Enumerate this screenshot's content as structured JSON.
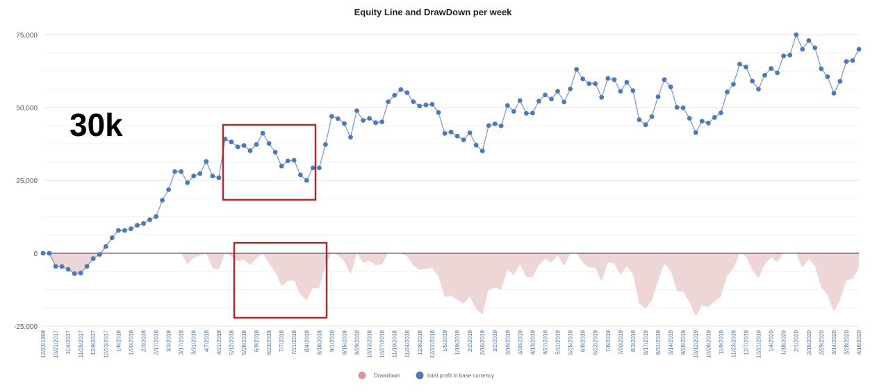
{
  "chart_data": {
    "type": "line",
    "title": "Equity Line and DrawDown per week",
    "xlabel": "",
    "ylabel": "",
    "ylim": [
      -25000,
      75000
    ],
    "yticks": [
      -25000,
      0,
      25000,
      50000,
      75000
    ],
    "ytick_labels": [
      "-25,000",
      "0",
      "25,000",
      "50,000",
      "75,000"
    ],
    "xtick_labels": [
      "12/23/1899",
      "10/21/2017",
      "11/4/2017",
      "11/25/2017",
      "12/9/2017",
      "12/23/2017",
      "1/6/2018",
      "1/20/2018",
      "2/3/2018",
      "2/17/2018",
      "3/3/2018",
      "3/17/2018",
      "3/31/2018",
      "4/7/2018",
      "4/21/2018",
      "5/12/2018",
      "5/26/2018",
      "6/9/2018",
      "6/23/2018",
      "7/7/2018",
      "7/21/2018",
      "8/4/2018",
      "8/18/2018",
      "9/1/2018",
      "9/15/2018",
      "9/29/2018",
      "10/13/2018",
      "10/27/2018",
      "11/10/2018",
      "11/24/2018",
      "12/8/2018",
      "12/22/2018",
      "1/5/2019",
      "1/19/2019",
      "2/2/2019",
      "2/16/2019",
      "3/2/2019",
      "3/16/2019",
      "3/30/2019",
      "4/13/2019",
      "4/27/2019",
      "5/11/2019",
      "5/25/2019",
      "6/8/2019",
      "6/22/2019",
      "7/6/2019",
      "7/20/2019",
      "8/3/2019",
      "8/17/2019",
      "8/31/2019",
      "9/14/2019",
      "9/28/2019",
      "10/12/2019",
      "10/26/2019",
      "11/9/2019",
      "11/23/2019",
      "12/7/2019",
      "12/21/2019",
      "1/4/2020",
      "1/18/2020",
      "2/1/2020",
      "2/15/2020",
      "2/29/2020",
      "3/14/2020",
      "3/28/2020",
      "4/18/2020"
    ],
    "grid": true,
    "legend_position": "bottom",
    "series": [
      {
        "name": "total profit in base currency",
        "color": "#4f78b8",
        "values": [
          0,
          0,
          -4500,
          -4600,
          -5500,
          -7000,
          -6800,
          -4500,
          -1800,
          -400,
          2300,
          5300,
          7800,
          7800,
          8400,
          9600,
          10200,
          11500,
          12600,
          18200,
          21800,
          28000,
          28000,
          24200,
          26500,
          27300,
          31500,
          26500,
          25900,
          39200,
          38200,
          36500,
          37000,
          35200,
          37300,
          41200,
          37700,
          34700,
          29900,
          31700,
          31900,
          26900,
          25000,
          29300,
          29300,
          37300,
          47000,
          46200,
          44500,
          39800,
          48900,
          45600,
          46300,
          44800,
          45100,
          52000,
          54200,
          56200,
          55100,
          52000,
          50500,
          50900,
          51100,
          48300,
          41100,
          41600,
          40200,
          38900,
          41300,
          37100,
          35100,
          43800,
          44400,
          43700,
          50700,
          48700,
          52400,
          48000,
          48100,
          52200,
          54300,
          52900,
          55600,
          51900,
          56400,
          63100,
          59800,
          58200,
          58200,
          53500,
          60000,
          59600,
          55600,
          58700,
          55800,
          45800,
          44100,
          46900,
          53700,
          59600,
          57100,
          50100,
          49900,
          46300,
          41400,
          45300,
          44700,
          46600,
          48200,
          55300,
          58000,
          64900,
          63900,
          59100,
          56300,
          61100,
          63400,
          61900,
          67700,
          68000,
          75000,
          70000,
          73000,
          70500,
          63300,
          60600,
          54900,
          59000,
          65800,
          66100,
          70000
        ]
      },
      {
        "name": "Drawdown",
        "color": "#d49b9b",
        "values": [
          0,
          0,
          -4500,
          -4600,
          -5500,
          -7000,
          -6800,
          -4500,
          -1800,
          -400,
          0,
          0,
          0,
          0,
          0,
          0,
          0,
          0,
          0,
          0,
          0,
          0,
          0,
          -3800,
          -1500,
          -700,
          0,
          -5000,
          -5600,
          0,
          -1000,
          -2700,
          -2200,
          -4000,
          -1900,
          0,
          -3500,
          -6500,
          -11300,
          -9500,
          -9300,
          -14300,
          -16200,
          -11900,
          -11900,
          -3900,
          0,
          -800,
          -2700,
          -7400,
          0,
          -3300,
          -2600,
          -4100,
          -3800,
          0,
          0,
          0,
          -1100,
          -4200,
          -5700,
          -5300,
          -5100,
          -7900,
          -15100,
          -14600,
          -16000,
          -17300,
          -14900,
          -19100,
          -21100,
          -12400,
          -11800,
          -12500,
          -5500,
          -7500,
          -3800,
          -8200,
          -8100,
          -4000,
          -1900,
          -3300,
          -600,
          -4300,
          0,
          0,
          -3300,
          -4900,
          -4900,
          -9600,
          -3100,
          -3500,
          -7500,
          -4400,
          -7300,
          -17300,
          -19000,
          -16200,
          -9400,
          -3500,
          -6000,
          -13000,
          -13200,
          -16800,
          -21700,
          -17800,
          -18400,
          -16500,
          -14900,
          -7800,
          -5100,
          0,
          -1000,
          -5800,
          -8600,
          -3800,
          -1500,
          -3000,
          0,
          0,
          0,
          -5000,
          -2000,
          -4500,
          -11700,
          -14400,
          -20100,
          -16000,
          -9200,
          -8900,
          -5000
        ]
      }
    ],
    "annotations": {
      "big_label": "30k"
    }
  }
}
